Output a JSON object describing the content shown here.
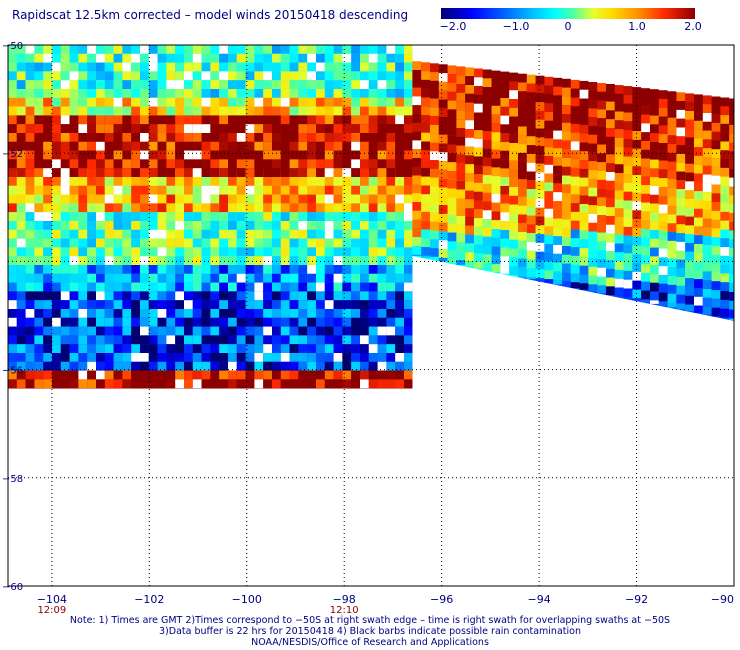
{
  "title": "Rapidscat 12.5km corrected – model winds 20150418 descending",
  "colorbar": {
    "ticks": [
      "−2.0",
      "−1.0",
      "0",
      "1.0",
      "2.0"
    ],
    "tick_values": [
      -2,
      -1,
      0,
      1,
      2
    ]
  },
  "colors": {
    "scale": [
      "#00006e",
      "#0000ff",
      "#0064ff",
      "#00c8ff",
      "#00ffff",
      "#50ffa0",
      "#e6ff2d",
      "#ffdc00",
      "#ff8c00",
      "#ff2800",
      "#8c0000"
    ],
    "text": "#000080",
    "time": "#8b0000"
  },
  "notes": [
    "Note: 1) Times are GMT 2)Times correspond to −50S at right swath edge – time is right swath for overlapping swaths at −50S",
    "3)Data buffer is 22 hrs for 20150418 4) Black barbs indicate possible rain contamination",
    "NOAA/NESDIS/Office of Research and Applications"
  ],
  "chart_data": {
    "type": "heatmap",
    "title": "Rapidscat 12.5km corrected – model winds 20150418 descending",
    "xlabel": "",
    "ylabel": "",
    "x_ticks": [
      -104,
      -102,
      -100,
      -98,
      -96,
      -94,
      -92,
      -90
    ],
    "x_tick_labels": [
      "−104",
      "−102",
      "−100",
      "−98",
      "−96",
      "−94",
      "−92",
      "−90"
    ],
    "y_ticks": [
      -50,
      -52,
      -54,
      -56,
      -58,
      -60
    ],
    "y_tick_labels": [
      "−50",
      "−52",
      "",
      "−56",
      "−58",
      "−60"
    ],
    "xlim": [
      -104.9,
      -90
    ],
    "ylim": [
      -60,
      -50
    ],
    "value_range": [
      -2.0,
      2.0
    ],
    "time_labels": [
      {
        "lon": -104,
        "text": "12:09"
      },
      {
        "lon": -98,
        "text": "12:10"
      }
    ],
    "swaths": [
      {
        "lon": [
          -104.9,
          -96.6
        ],
        "lat_top": -50.0,
        "lat_bottom": -56.35,
        "rows": [
          {
            "lat": [
              -50.0,
              -50.9
            ],
            "value": -0.2
          },
          {
            "lat": [
              -50.9,
              -51.3
            ],
            "value": 0.7
          },
          {
            "lat": [
              -51.3,
              -52.3
            ],
            "value": 1.9
          },
          {
            "lat": [
              -52.3,
              -53.0
            ],
            "value": 0.9
          },
          {
            "lat": [
              -53.0,
              -54.0
            ],
            "value": -0.1
          },
          {
            "lat": [
              -54.0,
              -54.5
            ],
            "value": -0.9
          },
          {
            "lat": [
              -54.5,
              -55.9
            ],
            "value": -1.4
          },
          {
            "lat": [
              -55.9,
              -56.35
            ],
            "value": 2.0
          }
        ]
      },
      {
        "lon": [
          -96.6,
          -90
        ],
        "lat_top_west": -50.3,
        "lat_top_east": -51.0,
        "lat_bottom_west": -53.9,
        "lat_bottom_east": -55.1,
        "rows": [
          {
            "lat": [
              -50.3,
              -51.6
            ],
            "value": 1.9
          },
          {
            "lat": [
              -51.6,
              -52.4
            ],
            "value": 1.6
          },
          {
            "lat": [
              -52.4,
              -53.4
            ],
            "value": 1.0
          },
          {
            "lat": [
              -53.4,
              -54.3
            ],
            "value": -0.4
          },
          {
            "lat": [
              -54.3,
              -55.1
            ],
            "value": -1.3
          }
        ]
      }
    ]
  }
}
